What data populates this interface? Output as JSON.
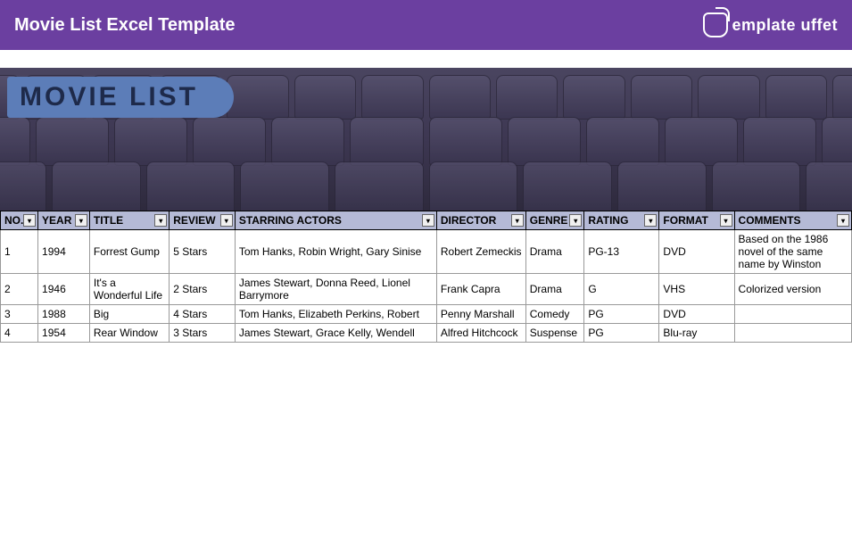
{
  "header": {
    "title": "Movie List Excel Template",
    "logo_text": "emplate uffet"
  },
  "banner": {
    "title": "MOVIE LIST"
  },
  "table": {
    "columns": [
      "NO.",
      "YEAR",
      "TITLE",
      "REVIEW",
      "STARRING ACTORS",
      "DIRECTOR",
      "GENRE",
      "RATING",
      "FORMAT",
      "COMMENTS"
    ],
    "rows": [
      {
        "no": "1",
        "year": "1994",
        "title": "Forrest Gump",
        "review": "5 Stars",
        "actors": "Tom Hanks, Robin Wright, Gary Sinise",
        "director": "Robert Zemeckis",
        "genre": "Drama",
        "rating": "PG-13",
        "format": "DVD",
        "comments": "Based on the 1986 novel of the same name by Winston"
      },
      {
        "no": "2",
        "year": "1946",
        "title": "It's a Wonderful Life",
        "review": "2 Stars",
        "actors": "James Stewart, Donna Reed, Lionel Barrymore",
        "director": "Frank Capra",
        "genre": "Drama",
        "rating": "G",
        "format": "VHS",
        "comments": "Colorized version"
      },
      {
        "no": "3",
        "year": "1988",
        "title": "Big",
        "review": "4 Stars",
        "actors": "Tom Hanks, Elizabeth Perkins, Robert",
        "director": "Penny Marshall",
        "genre": "Comedy",
        "rating": "PG",
        "format": "DVD",
        "comments": ""
      },
      {
        "no": "4",
        "year": "1954",
        "title": "Rear Window",
        "review": "3 Stars",
        "actors": "James Stewart, Grace Kelly, Wendell",
        "director": "Alfred Hitchcock",
        "genre": "Suspense",
        "rating": "PG",
        "format": "Blu-ray",
        "comments": ""
      }
    ]
  },
  "colors": {
    "header_bg": "#6b3fa0",
    "th_bg": "#b5bad6",
    "banner_badge": "#5c7db8"
  }
}
